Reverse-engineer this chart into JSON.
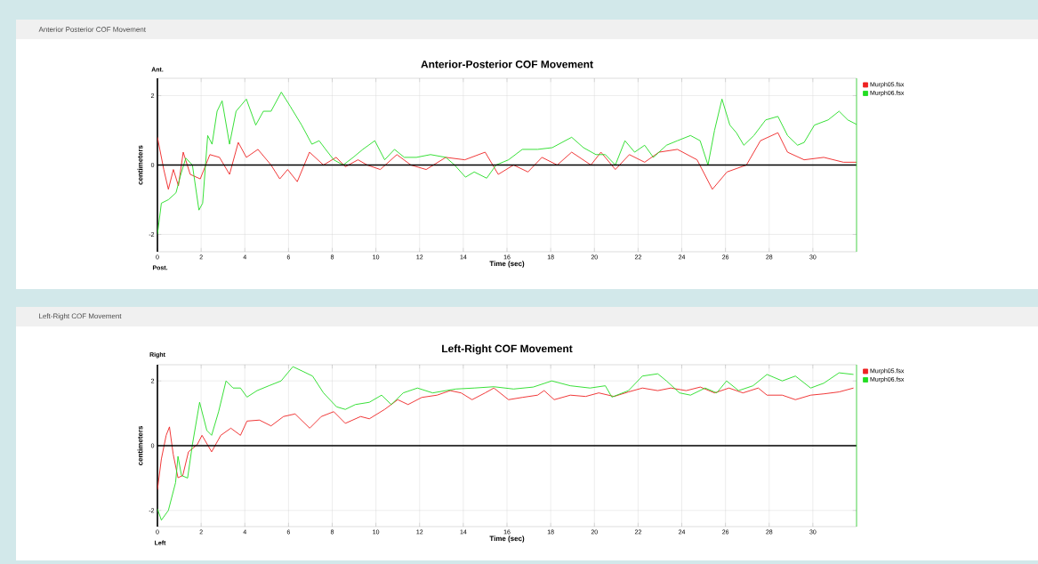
{
  "chart_data": [
    {
      "type": "line",
      "title": "Anterior-Posterior COF Movement",
      "xlabel": "Time (sec)",
      "ylabel": "centimeters",
      "annotations": [
        "Anterior Posterior COF Movement",
        "Ant.",
        "Post."
      ],
      "xlim": [
        0,
        32
      ],
      "ylim": [
        -2.5,
        2.5
      ],
      "xticks": [
        0,
        2,
        4,
        6,
        8,
        10,
        12,
        14,
        16,
        18,
        20,
        22,
        24,
        26,
        28,
        30
      ],
      "yticks": [
        -2,
        0,
        2
      ],
      "grid": true,
      "legend": "right",
      "line_style": "solid",
      "ref_lines": [
        {
          "axis": "y",
          "value": 0,
          "color": "#000000"
        },
        {
          "axis": "x",
          "value": 32,
          "color": "#33dd33"
        }
      ],
      "series": [
        {
          "name": "Murph05.fsx",
          "color": "#ee2222",
          "x": [
            0,
            0.29,
            0.5,
            0.73,
            0.96,
            1.18,
            1.5,
            1.96,
            2.4,
            2.84,
            3.3,
            3.7,
            4.07,
            4.6,
            5.2,
            5.6,
            5.96,
            6.4,
            6.96,
            7.6,
            8.18,
            8.6,
            9.18,
            9.6,
            10.2,
            10.96,
            11.6,
            12.3,
            13.2,
            14.07,
            15.0,
            15.6,
            16.3,
            16.96,
            17.6,
            18.3,
            18.96,
            19.84,
            20.3,
            20.96,
            21.6,
            22.3,
            22.96,
            23.8,
            24.7,
            25.4,
            26.07,
            26.96,
            27.6,
            28.4,
            28.84,
            29.6,
            30.5,
            31.4,
            32.0
          ],
          "values": [
            0.8,
            -0.13,
            -0.7,
            -0.13,
            -0.6,
            0.37,
            -0.27,
            -0.4,
            0.3,
            0.22,
            -0.27,
            0.65,
            0.22,
            0.45,
            0,
            -0.4,
            -0.13,
            -0.48,
            0.37,
            0,
            0.22,
            -0.05,
            0.15,
            0,
            -0.13,
            0.3,
            0,
            -0.13,
            0.22,
            0.15,
            0.37,
            -0.27,
            0,
            -0.2,
            0.22,
            0,
            0.37,
            0,
            0.37,
            -0.13,
            0.3,
            0.08,
            0.37,
            0.45,
            0.15,
            -0.7,
            -0.2,
            0,
            0.7,
            0.93,
            0.37,
            0.15,
            0.22,
            0.08,
            0.08
          ]
        },
        {
          "name": "Murph06.fsx",
          "color": "#22dd22",
          "x": [
            0,
            0.18,
            0.5,
            0.85,
            1.07,
            1.3,
            1.6,
            1.9,
            2.07,
            2.3,
            2.5,
            2.73,
            2.96,
            3.3,
            3.6,
            4.07,
            4.5,
            4.85,
            5.2,
            5.67,
            6.07,
            6.6,
            7.07,
            7.4,
            7.7,
            8.07,
            8.5,
            8.96,
            9.4,
            9.95,
            10.4,
            10.85,
            11.3,
            11.85,
            12.5,
            13.2,
            13.6,
            14.1,
            14.5,
            15.07,
            15.5,
            16.07,
            16.7,
            17.4,
            18.07,
            18.96,
            19.5,
            20.07,
            20.5,
            20.96,
            21.4,
            21.84,
            22.3,
            22.7,
            23.3,
            23.8,
            24.4,
            24.84,
            25.2,
            25.5,
            25.84,
            26.2,
            26.5,
            26.84,
            27.3,
            27.84,
            28.4,
            28.84,
            29.3,
            29.6,
            30.07,
            30.7,
            31.2,
            31.6,
            32.0
          ],
          "values": [
            -2.0,
            -1.1,
            -1.0,
            -0.8,
            -0.27,
            0.2,
            0,
            -1.3,
            -1.1,
            0.85,
            0.6,
            1.55,
            1.85,
            0.6,
            1.55,
            1.9,
            1.15,
            1.55,
            1.55,
            2.1,
            1.7,
            1.15,
            0.6,
            0.7,
            0.45,
            0.15,
            0.0,
            0.22,
            0.45,
            0.7,
            0.15,
            0.45,
            0.22,
            0.22,
            0.3,
            0.22,
            0.0,
            -0.35,
            -0.2,
            -0.38,
            0,
            0.15,
            0.45,
            0.45,
            0.5,
            0.8,
            0.5,
            0.3,
            0.3,
            0,
            0.7,
            0.37,
            0.57,
            0.22,
            0.57,
            0.7,
            0.85,
            0.7,
            0,
            1.0,
            1.9,
            1.15,
            0.93,
            0.57,
            0.85,
            1.3,
            1.4,
            0.85,
            0.57,
            0.65,
            1.15,
            1.3,
            1.55,
            1.3,
            1.17
          ]
        }
      ]
    },
    {
      "type": "line",
      "title": "Left-Right COF Movement",
      "xlabel": "Time (sec)",
      "ylabel": "centimeters",
      "annotations": [
        "Left-Right COF Movement",
        "Right",
        "Left"
      ],
      "xlim": [
        0,
        32
      ],
      "ylim": [
        -2.5,
        2.5
      ],
      "xticks": [
        0,
        2,
        4,
        6,
        8,
        10,
        12,
        14,
        16,
        18,
        20,
        22,
        24,
        26,
        28,
        30
      ],
      "yticks": [
        -2,
        0,
        2
      ],
      "grid": true,
      "legend": "right",
      "line_style": "solid",
      "ref_lines": [
        {
          "axis": "y",
          "value": 0,
          "color": "#000000"
        },
        {
          "axis": "x",
          "value": 32,
          "color": "#33dd33"
        }
      ],
      "series": [
        {
          "name": "Murph05.fsx",
          "color": "#ee2222",
          "x": [
            0,
            0.18,
            0.4,
            0.55,
            0.72,
            0.94,
            1.16,
            1.42,
            1.82,
            2.04,
            2.48,
            2.9,
            3.36,
            3.8,
            4.1,
            4.67,
            5.2,
            5.77,
            6.3,
            6.97,
            7.5,
            8.07,
            8.6,
            9.3,
            9.7,
            10.4,
            11.0,
            11.47,
            12.1,
            12.8,
            13.4,
            13.9,
            14.4,
            15.0,
            15.4,
            16.07,
            16.7,
            17.4,
            17.7,
            18.16,
            18.9,
            19.6,
            20.2,
            20.9,
            21.56,
            22.2,
            22.9,
            23.5,
            24.2,
            24.85,
            25.5,
            26.16,
            26.8,
            27.5,
            27.9,
            28.6,
            29.2,
            29.9,
            30.5,
            31.2,
            31.86
          ],
          "values": [
            -1.36,
            -0.41,
            0.32,
            0.58,
            -0.26,
            -0.99,
            -0.92,
            -0.19,
            0.03,
            0.32,
            -0.19,
            0.32,
            0.54,
            0.32,
            0.76,
            0.79,
            0.61,
            0.9,
            0.98,
            0.54,
            0.9,
            1.05,
            0.69,
            0.9,
            0.83,
            1.12,
            1.42,
            1.27,
            1.49,
            1.56,
            1.7,
            1.63,
            1.42,
            1.63,
            1.78,
            1.42,
            1.49,
            1.56,
            1.7,
            1.42,
            1.56,
            1.52,
            1.63,
            1.52,
            1.66,
            1.78,
            1.7,
            1.78,
            1.7,
            1.81,
            1.63,
            1.78,
            1.63,
            1.78,
            1.56,
            1.56,
            1.42,
            1.56,
            1.6,
            1.66,
            1.78
          ]
        },
        {
          "name": "Murph06.fsx",
          "color": "#22dd22",
          "x": [
            0,
            0.18,
            0.5,
            0.83,
            0.94,
            1.1,
            1.38,
            1.6,
            1.93,
            2.26,
            2.48,
            2.8,
            3.14,
            3.46,
            3.8,
            4.1,
            4.56,
            5.1,
            5.66,
            6.2,
            6.64,
            7.1,
            7.6,
            8.2,
            8.6,
            9.06,
            9.7,
            10.26,
            10.7,
            11.25,
            11.9,
            12.6,
            13.2,
            13.66,
            14.5,
            15.4,
            16.3,
            17.2,
            18.05,
            18.9,
            19.8,
            20.5,
            20.8,
            21.56,
            22.2,
            22.9,
            23.3,
            23.9,
            24.4,
            25.07,
            25.6,
            26.05,
            26.6,
            27.26,
            27.9,
            28.6,
            29.2,
            29.9,
            30.5,
            31.2,
            31.86
          ],
          "values": [
            -1.95,
            -2.3,
            -2.0,
            -1.14,
            -0.33,
            -0.92,
            -1.0,
            0.03,
            1.34,
            0.47,
            0.32,
            1.05,
            2.0,
            1.78,
            1.78,
            1.5,
            1.7,
            1.85,
            2.0,
            2.44,
            2.3,
            2.15,
            1.63,
            1.2,
            1.12,
            1.27,
            1.34,
            1.56,
            1.27,
            1.63,
            1.78,
            1.63,
            1.7,
            1.75,
            1.78,
            1.82,
            1.75,
            1.81,
            2.0,
            1.85,
            1.78,
            1.85,
            1.5,
            1.7,
            2.15,
            2.22,
            2.0,
            1.63,
            1.56,
            1.78,
            1.63,
            2.0,
            1.7,
            1.85,
            2.2,
            2.0,
            2.15,
            1.78,
            1.93,
            2.25,
            2.2
          ]
        }
      ]
    }
  ]
}
